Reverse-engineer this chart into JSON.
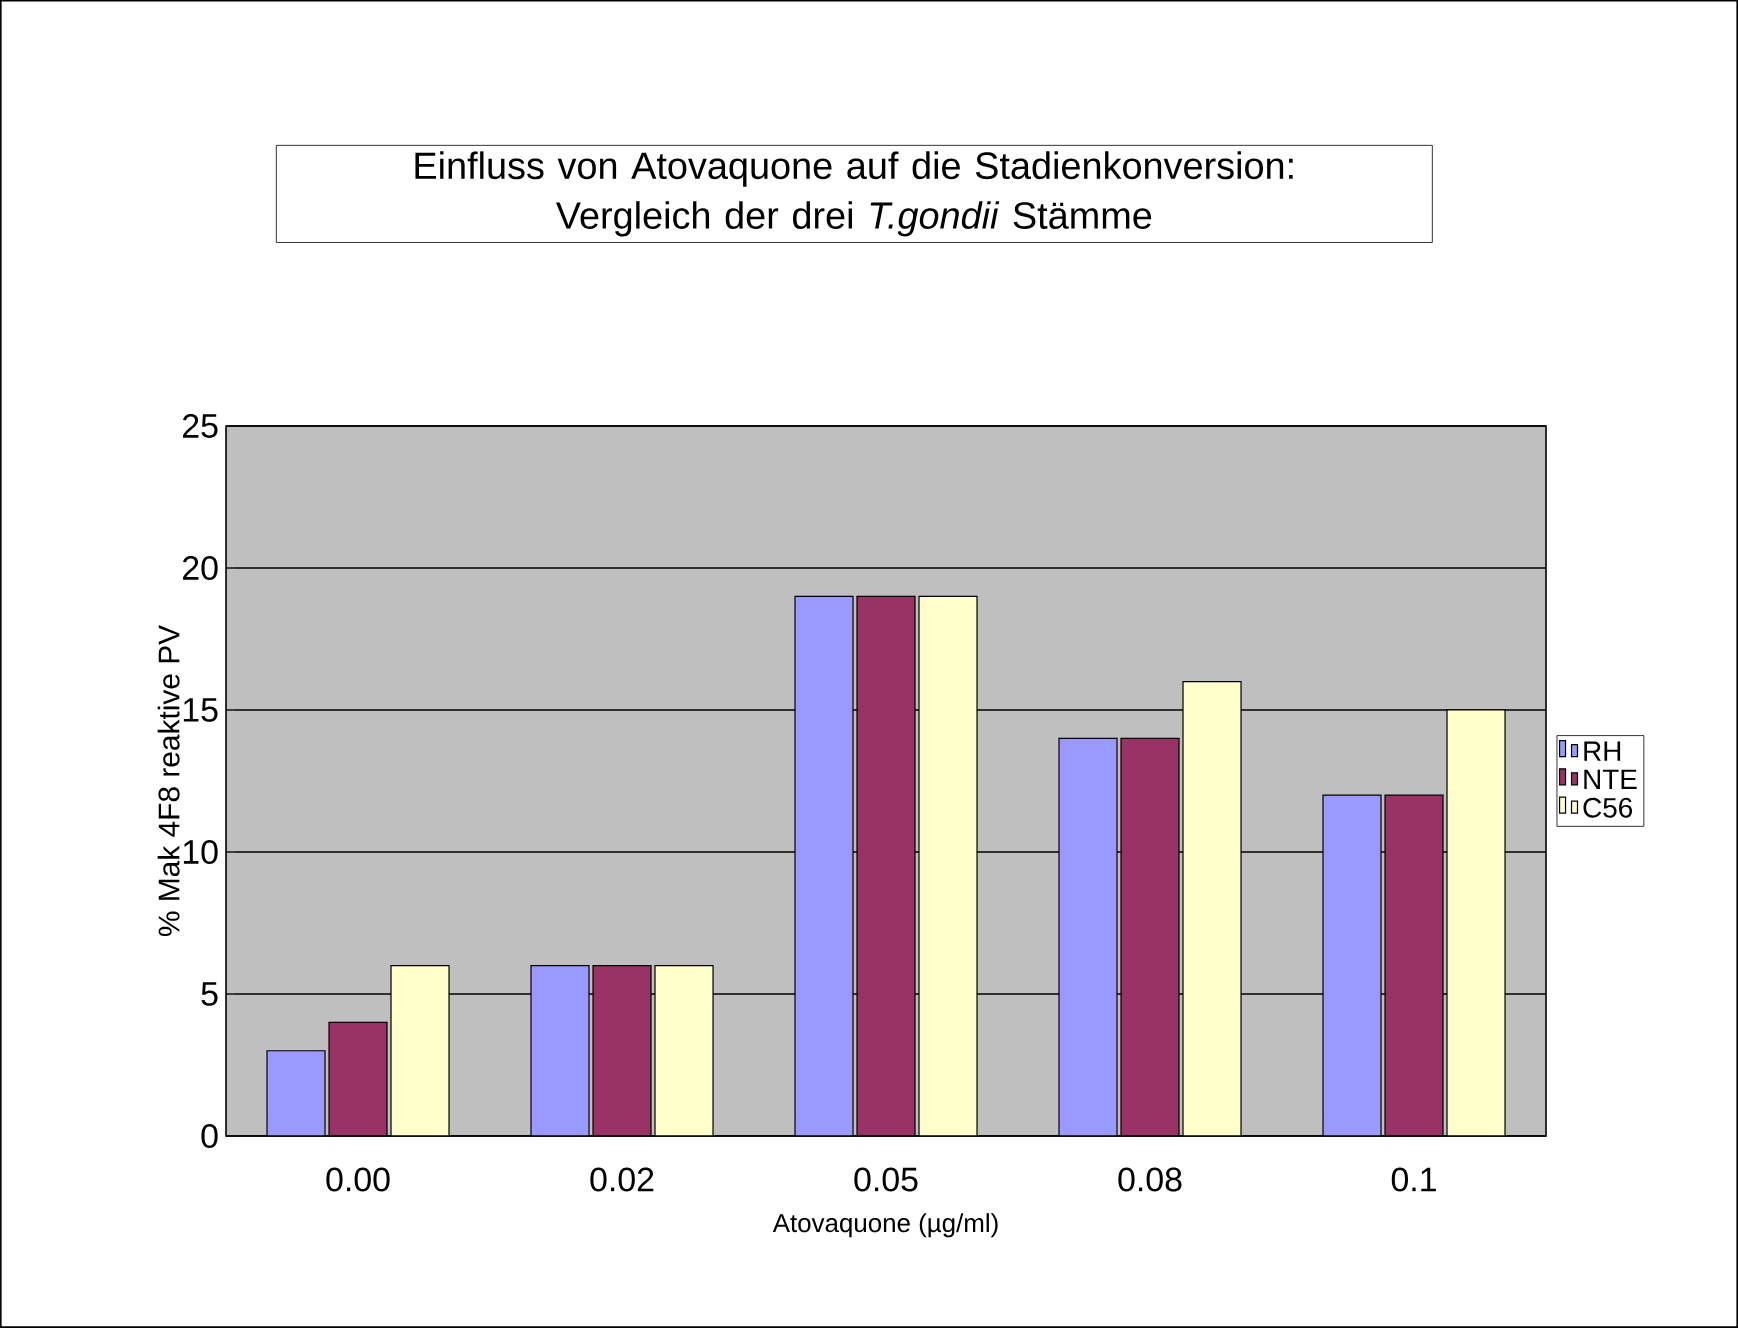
{
  "chart_data": {
    "type": "bar",
    "title": "Einfluss von Atovaquone auf die Stadienkonversion: Vergleich der drei *T.gondii* Stämme",
    "xlabel": "Atovaquone (µg/ml)",
    "ylabel": "% Mak 4F8 reaktive PV",
    "categories": [
      "0.00",
      "0.02",
      "0.05",
      "0.08",
      "0.1"
    ],
    "series": [
      {
        "name": "RH",
        "color": "#9999ff",
        "values": [
          3,
          6,
          19,
          14,
          12
        ]
      },
      {
        "name": "NTE",
        "color": "#993366",
        "values": [
          4,
          6,
          19,
          14,
          12
        ]
      },
      {
        "name": "C56",
        "color": "#ffffcc",
        "values": [
          6,
          6,
          19,
          16,
          15
        ]
      }
    ],
    "ylim": [
      0,
      25
    ],
    "yticks": [
      0,
      5,
      10,
      15,
      20,
      25
    ],
    "grid": "y",
    "legend": "right"
  }
}
